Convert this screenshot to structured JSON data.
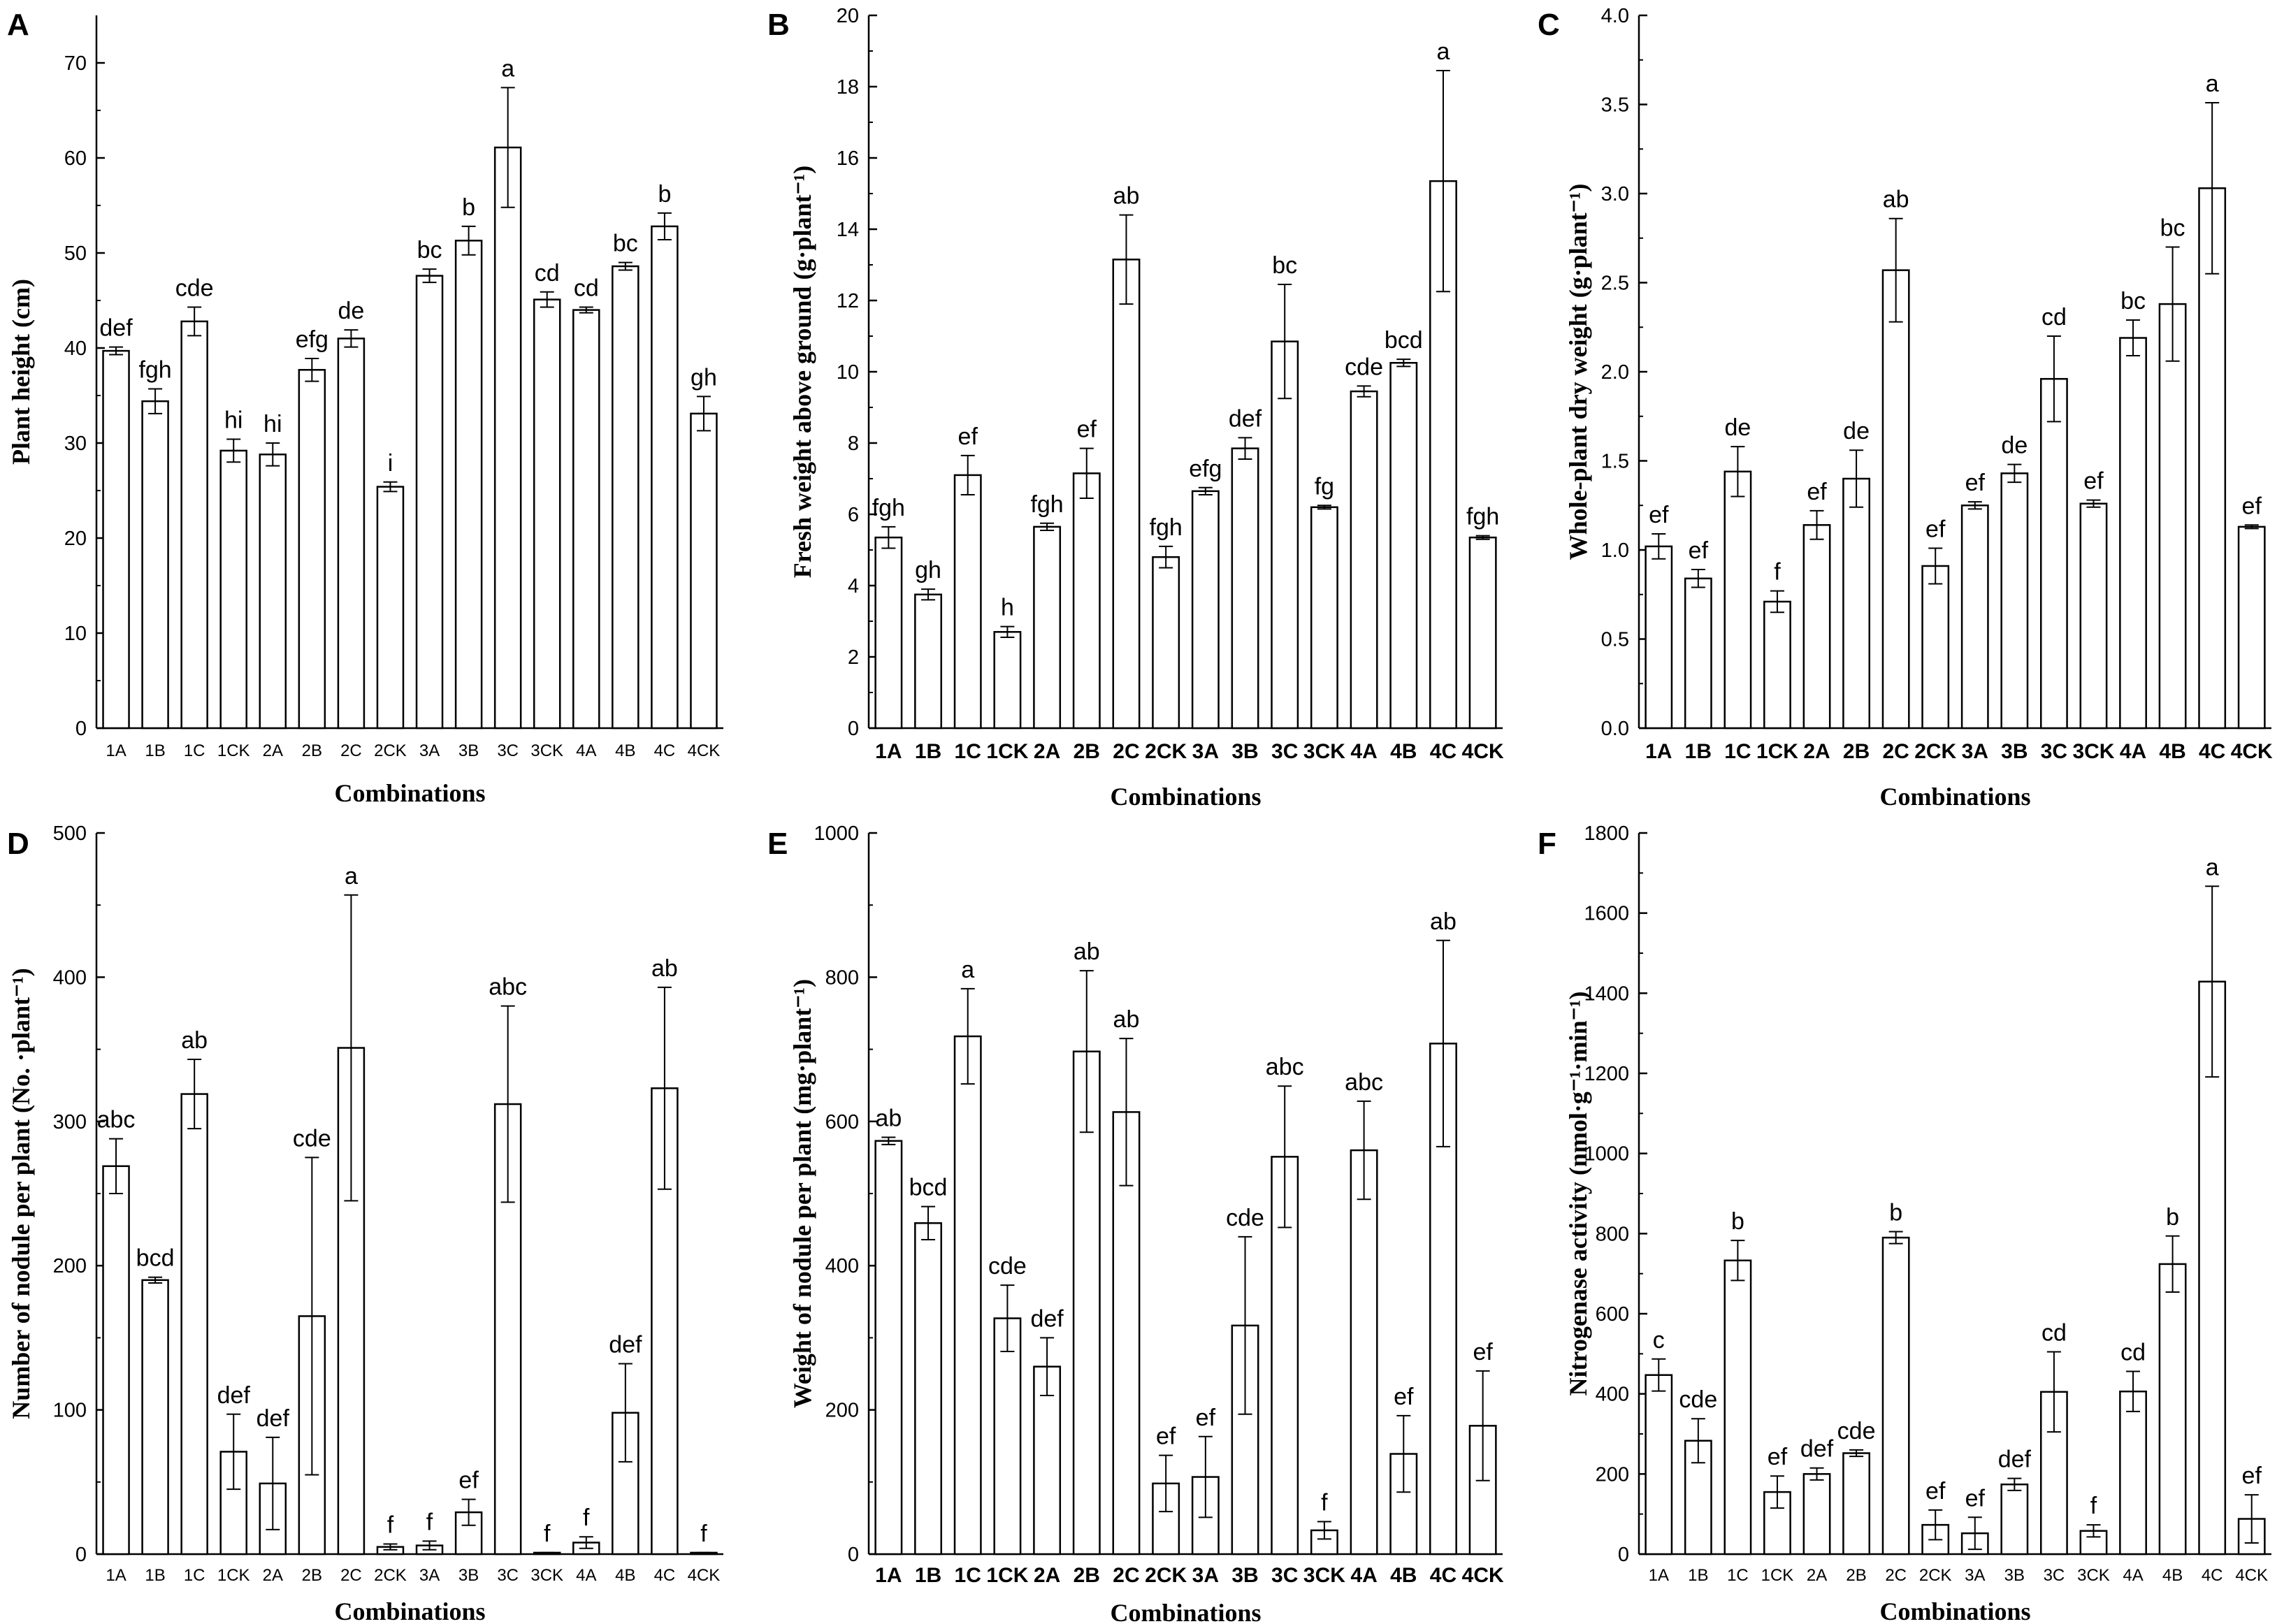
{
  "chart_data": [
    {
      "panel": "A",
      "type": "bar",
      "title": "",
      "xlabel": "Combinations",
      "ylabel": "Plant height (cm)",
      "ylim": [
        0,
        75
      ],
      "yticks": [
        0,
        10,
        20,
        30,
        40,
        50,
        60,
        70
      ],
      "categories": [
        "1A",
        "1B",
        "1C",
        "1CK",
        "2A",
        "2B",
        "2C",
        "2CK",
        "3A",
        "3B",
        "3C",
        "3CK",
        "4A",
        "4B",
        "4C",
        "4CK"
      ],
      "values": [
        39.7,
        34.4,
        42.8,
        29.2,
        28.8,
        37.7,
        41.0,
        25.4,
        47.6,
        51.3,
        61.1,
        45.1,
        44.0,
        48.6,
        52.8,
        33.1
      ],
      "errors": [
        0.4,
        1.3,
        1.5,
        1.2,
        1.2,
        1.2,
        0.9,
        0.5,
        0.7,
        1.5,
        6.3,
        0.8,
        0.3,
        0.4,
        1.4,
        1.8
      ],
      "letters": [
        "def",
        "fgh",
        "cde",
        "hi",
        "hi",
        "efg",
        "de",
        "i",
        "bc",
        "b",
        "a",
        "cd",
        "cd",
        "bc",
        "b",
        "gh"
      ]
    },
    {
      "panel": "B",
      "type": "bar",
      "title": "",
      "xlabel": "Combinations",
      "ylabel": "Fresh weight above ground (g·plant⁻¹)",
      "ylim": [
        0,
        20
      ],
      "yticks": [
        0,
        2,
        4,
        6,
        8,
        10,
        12,
        14,
        16,
        18,
        20
      ],
      "categories": [
        "1A",
        "1B",
        "1C",
        "1CK",
        "2A",
        "2B",
        "2C",
        "2CK",
        "3A",
        "3B",
        "3C",
        "3CK",
        "4A",
        "4B",
        "4C",
        "4CK"
      ],
      "values": [
        5.35,
        3.75,
        7.1,
        2.7,
        5.65,
        7.15,
        13.15,
        4.8,
        6.65,
        7.85,
        10.85,
        6.2,
        9.45,
        10.25,
        15.35,
        5.35
      ],
      "errors": [
        0.3,
        0.15,
        0.55,
        0.15,
        0.1,
        0.7,
        1.25,
        0.3,
        0.1,
        0.3,
        1.6,
        0.05,
        0.15,
        0.1,
        3.1,
        0.05
      ],
      "letters": [
        "fgh",
        "gh",
        "ef",
        "h",
        "fgh",
        "ef",
        "ab",
        "fgh",
        "efg",
        "def",
        "bc",
        "fg",
        "cde",
        "bcd",
        "a",
        "fgh"
      ]
    },
    {
      "panel": "C",
      "type": "bar",
      "title": "",
      "xlabel": "Combinations",
      "ylabel": "Whole-plant dry weight (g·plant⁻¹)",
      "ylim": [
        0,
        4.0
      ],
      "yticks": [
        0.0,
        0.5,
        1.0,
        1.5,
        2.0,
        2.5,
        3.0,
        3.5,
        4.0
      ],
      "categories": [
        "1A",
        "1B",
        "1C",
        "1CK",
        "2A",
        "2B",
        "2C",
        "2CK",
        "3A",
        "3B",
        "3C",
        "3CK",
        "4A",
        "4B",
        "4C",
        "4CK"
      ],
      "values": [
        1.02,
        0.84,
        1.44,
        0.71,
        1.14,
        1.4,
        2.57,
        0.91,
        1.25,
        1.43,
        1.96,
        1.26,
        2.19,
        2.38,
        3.03,
        1.13
      ],
      "errors": [
        0.07,
        0.05,
        0.14,
        0.06,
        0.08,
        0.16,
        0.29,
        0.1,
        0.02,
        0.05,
        0.24,
        0.02,
        0.1,
        0.32,
        0.48,
        0.01
      ],
      "letters": [
        "ef",
        "ef",
        "de",
        "f",
        "ef",
        "de",
        "ab",
        "ef",
        "ef",
        "de",
        "cd",
        "ef",
        "bc",
        "bc",
        "a",
        "ef"
      ]
    },
    {
      "panel": "D",
      "type": "bar",
      "title": "",
      "xlabel": "Combinations",
      "ylabel": "Number of nodule per plant (No. ·plant⁻¹)",
      "ylim": [
        0,
        500
      ],
      "yticks": [
        0,
        100,
        200,
        300,
        400,
        500
      ],
      "categories": [
        "1A",
        "1B",
        "1C",
        "1CK",
        "2A",
        "2B",
        "2C",
        "2CK",
        "3A",
        "3B",
        "3C",
        "3CK",
        "4A",
        "4B",
        "4C",
        "4CK"
      ],
      "values": [
        269,
        190,
        319,
        71,
        49,
        165,
        351,
        5,
        6,
        29,
        312,
        1,
        8,
        98,
        323,
        1
      ],
      "errors": [
        19,
        2,
        24,
        26,
        32,
        110,
        106,
        2,
        3,
        9,
        68,
        0,
        4,
        34,
        70,
        0
      ],
      "letters": [
        "abc",
        "bcd",
        "ab",
        "def",
        "def",
        "cde",
        "a",
        "f",
        "f",
        "ef",
        "abc",
        "f",
        "f",
        "def",
        "ab",
        "f"
      ]
    },
    {
      "panel": "E",
      "type": "bar",
      "title": "",
      "xlabel": "Combinations",
      "ylabel": "Weight of nodule per plant (mg·plant⁻¹)",
      "ylim": [
        0,
        1000
      ],
      "yticks": [
        0,
        200,
        400,
        600,
        800,
        1000
      ],
      "categories": [
        "1A",
        "1B",
        "1C",
        "1CK",
        "2A",
        "2B",
        "2C",
        "2CK",
        "3A",
        "3B",
        "3C",
        "3CK",
        "4A",
        "4B",
        "4C",
        "4CK"
      ],
      "values": [
        573,
        459,
        718,
        327,
        260,
        697,
        613,
        98,
        107,
        317,
        551,
        33,
        560,
        139,
        708,
        178
      ],
      "errors": [
        5,
        23,
        66,
        46,
        40,
        112,
        102,
        39,
        56,
        123,
        98,
        12,
        68,
        53,
        143,
        76
      ],
      "letters": [
        "ab",
        "bcd",
        "a",
        "cde",
        "def",
        "ab",
        "ab",
        "ef",
        "ef",
        "cde",
        "abc",
        "f",
        "abc",
        "ef",
        "ab",
        "ef"
      ]
    },
    {
      "panel": "F",
      "type": "bar",
      "title": "",
      "xlabel": "Combinations",
      "ylabel": "Nitrogenase activity (nmol·g⁻¹·min⁻¹)",
      "ylim": [
        0,
        1800
      ],
      "yticks": [
        0,
        200,
        400,
        600,
        800,
        1000,
        1200,
        1400,
        1600,
        1800
      ],
      "categories": [
        "1A",
        "1B",
        "1C",
        "1CK",
        "2A",
        "2B",
        "2C",
        "2CK",
        "3A",
        "3B",
        "3C",
        "3CK",
        "4A",
        "4B",
        "4C",
        "4CK"
      ],
      "values": [
        447,
        283,
        733,
        155,
        200,
        252,
        790,
        73,
        52,
        174,
        405,
        58,
        406,
        724,
        1429,
        88
      ],
      "errors": [
        40,
        55,
        50,
        40,
        15,
        8,
        15,
        37,
        40,
        15,
        100,
        15,
        50,
        70,
        238,
        60
      ],
      "letters": [
        "c",
        "cde",
        "b",
        "ef",
        "def",
        "cde",
        "b",
        "ef",
        "ef",
        "def",
        "cd",
        "f",
        "cd",
        "b",
        "a",
        "ef"
      ]
    }
  ]
}
